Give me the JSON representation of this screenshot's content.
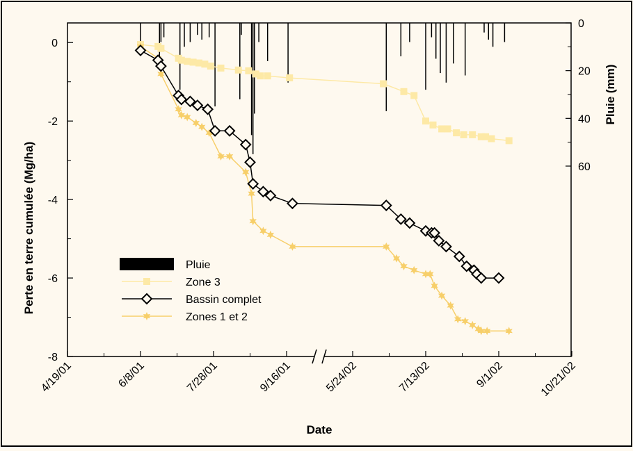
{
  "colors": {
    "background": "#fef9ef",
    "frame": "#000000",
    "pluie": "#000000",
    "zone3": "#fde9a6",
    "bassin": "#000000",
    "zones12": "#f7cf6a"
  },
  "chart_data": {
    "type": "line",
    "xlabel": "Date",
    "ylabel": "Perte en terre cumulée (Mg/ha)",
    "y2label": "Pluie (mm)",
    "ylim": [
      -8,
      0.5
    ],
    "y2lim": [
      0,
      60
    ],
    "y2_inverted": true,
    "x_axis_break": "between 9/16/01 and 5/24/02",
    "x_ticks": [
      "4/19/01",
      "6/8/01",
      "7/28/01",
      "9/16/01",
      "5/24/02",
      "7/13/02",
      "9/1/02",
      "10/21/02"
    ],
    "y_ticks": [
      "0",
      "-2",
      "-4",
      "-6",
      "-8"
    ],
    "y2_ticks": [
      "0",
      "20",
      "40",
      "60"
    ],
    "legend_position": "middle-left",
    "legend": [
      "Pluie",
      "Zone 3",
      "Bassin complet",
      "Zones 1 et 2"
    ],
    "series": [
      {
        "name": "Pluie",
        "kind": "bar",
        "color": "#000000",
        "x": [
          "6/8/01",
          "6/21/01",
          "6/22/01",
          "6/24/01",
          "7/5/01",
          "7/8/01",
          "7/12/01",
          "7/17/01",
          "7/20/01",
          "7/25/01",
          "7/29/01",
          "8/15/01",
          "8/16/01",
          "8/23/01",
          "8/24/01",
          "8/25/01",
          "8/28/01",
          "9/3/01",
          "9/17/01",
          "6/16/02",
          "6/26/02",
          "7/2/02",
          "7/13/02",
          "7/17/02",
          "7/20/02",
          "7/23/02",
          "7/27/02",
          "8/1/02",
          "8/9/02",
          "8/22/02",
          "8/25/02",
          "8/28/02",
          "9/5/02"
        ],
        "values": [
          9,
          16,
          8,
          6,
          28,
          10,
          8,
          5,
          7,
          6,
          35,
          32,
          5,
          47,
          55,
          38,
          8,
          16,
          25,
          37,
          14,
          8,
          28,
          6,
          15,
          21,
          25,
          17,
          22,
          4,
          7,
          10,
          8
        ]
      },
      {
        "name": "Zone 3",
        "kind": "line",
        "color": "#fde9a6",
        "x": [
          "6/8/01",
          "6/20/01",
          "6/22/01",
          "7/4/01",
          "7/6/01",
          "7/10/01",
          "7/14/01",
          "7/18/01",
          "7/22/01",
          "7/26/01",
          "8/2/01",
          "8/14/01",
          "8/21/01",
          "8/26/01",
          "8/29/01",
          "9/3/01",
          "9/18/01",
          "6/14/02",
          "6/28/02",
          "7/5/02",
          "7/13/02",
          "7/18/02",
          "7/24/02",
          "7/28/02",
          "8/3/02",
          "8/8/02",
          "8/14/02",
          "8/20/02",
          "8/23/02",
          "8/27/02",
          "9/8/02"
        ],
        "values": [
          -0.05,
          -0.1,
          -0.15,
          -0.4,
          -0.45,
          -0.48,
          -0.5,
          -0.52,
          -0.55,
          -0.6,
          -0.65,
          -0.7,
          -0.72,
          -0.8,
          -0.85,
          -0.85,
          -0.9,
          -1.05,
          -1.25,
          -1.35,
          -2.0,
          -2.1,
          -2.2,
          -2.2,
          -2.3,
          -2.35,
          -2.35,
          -2.4,
          -2.4,
          -2.45,
          -2.5
        ]
      },
      {
        "name": "Bassin complet",
        "kind": "line",
        "color": "#000000",
        "x": [
          "6/8/01",
          "6/20/01",
          "6/22/01",
          "7/4/01",
          "7/6/01",
          "7/12/01",
          "7/17/01",
          "7/24/01",
          "7/29/01",
          "8/8/01",
          "8/19/01",
          "8/22/01",
          "8/24/01",
          "8/31/01",
          "9/5/01",
          "9/20/01",
          "6/16/02",
          "6/26/02",
          "7/2/02",
          "7/13/02",
          "7/17/02",
          "7/19/02",
          "7/22/02",
          "7/27/02",
          "8/5/02",
          "8/10/02",
          "8/15/02",
          "8/17/02",
          "8/20/02",
          "9/1/02"
        ],
        "values": [
          -0.2,
          -0.45,
          -0.6,
          -1.35,
          -1.45,
          -1.5,
          -1.6,
          -1.7,
          -2.25,
          -2.25,
          -2.6,
          -3.05,
          -3.6,
          -3.8,
          -3.9,
          -4.1,
          -4.15,
          -4.5,
          -4.6,
          -4.8,
          -4.85,
          -4.85,
          -5.05,
          -5.2,
          -5.45,
          -5.7,
          -5.8,
          -5.9,
          -6.0,
          -6.0
        ]
      },
      {
        "name": "Zones 1 et 2",
        "kind": "line",
        "color": "#f7cf6a",
        "x": [
          "6/8/01",
          "6/20/01",
          "6/22/01",
          "7/4/01",
          "7/6/01",
          "7/10/01",
          "7/16/01",
          "7/20/01",
          "7/25/01",
          "8/2/01",
          "8/8/01",
          "8/19/01",
          "8/23/01",
          "8/24/01",
          "8/31/01",
          "9/5/01",
          "9/20/01",
          "6/16/02",
          "6/23/02",
          "6/28/02",
          "7/5/02",
          "7/13/02",
          "7/16/02",
          "7/19/02",
          "7/24/02",
          "7/30/02",
          "8/4/02",
          "8/9/02",
          "8/14/02",
          "8/18/02",
          "8/20/02",
          "8/24/02",
          "9/8/02"
        ],
        "values": [
          -0.1,
          -0.4,
          -0.8,
          -1.7,
          -1.85,
          -1.9,
          -2.05,
          -2.15,
          -2.3,
          -2.9,
          -2.9,
          -3.3,
          -3.85,
          -4.55,
          -4.8,
          -4.9,
          -5.2,
          -5.2,
          -5.5,
          -5.7,
          -5.8,
          -5.9,
          -5.9,
          -6.2,
          -6.45,
          -6.7,
          -7.05,
          -7.1,
          -7.2,
          -7.3,
          -7.35,
          -7.35,
          -7.35
        ]
      }
    ]
  }
}
